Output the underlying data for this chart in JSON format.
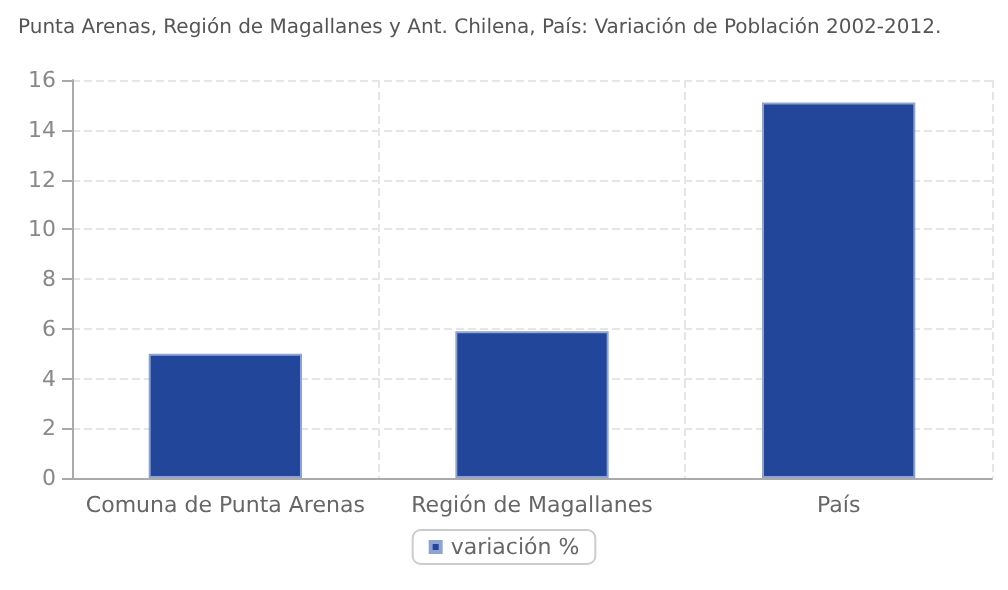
{
  "chart_data": {
    "type": "bar",
    "title": "Punta Arenas, Región de Magallanes y Ant. Chilena, País: Variación de Población 2002-2012.",
    "categories": [
      "Comuna de Punta Arenas",
      "Región de Magallanes",
      "País"
    ],
    "series": [
      {
        "name": "variación %",
        "color": "#21469a",
        "values": [
          5.0,
          5.9,
          15.1
        ]
      }
    ],
    "ylim": [
      0,
      16
    ],
    "yticks": [
      0,
      2,
      4,
      6,
      8,
      10,
      12,
      14,
      16
    ],
    "grid": true,
    "legend": "bottom"
  }
}
